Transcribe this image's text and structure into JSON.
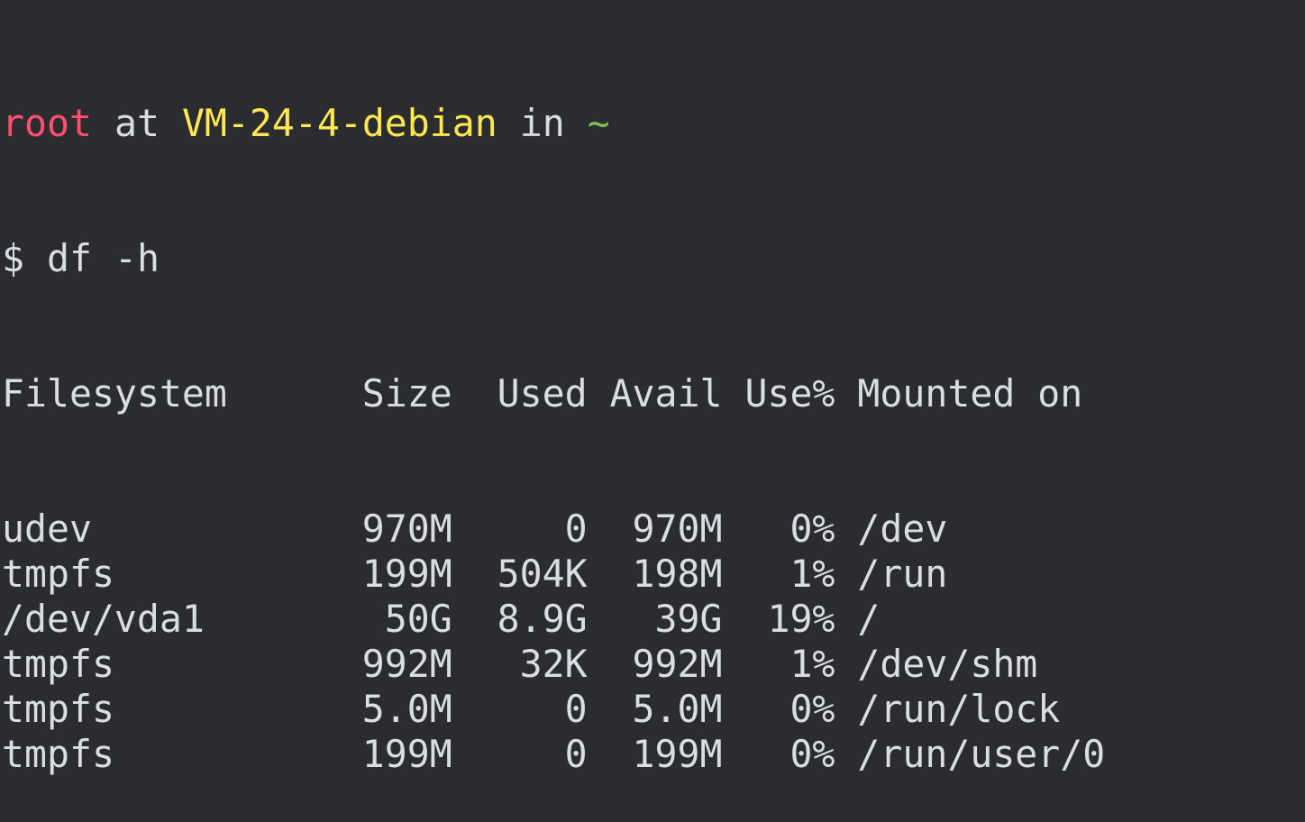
{
  "prompt": {
    "user": "root",
    "at": "at",
    "host": "VM-24-4-debian",
    "in": "in",
    "cwd": "~"
  },
  "command": {
    "symbol": "$",
    "text": "df -h"
  },
  "table": {
    "headers": [
      "Filesystem",
      "Size",
      "Used",
      "Avail",
      "Use%",
      "Mounted on"
    ],
    "rows": [
      [
        "udev",
        "970M",
        "0",
        "970M",
        "0%",
        "/dev"
      ],
      [
        "tmpfs",
        "199M",
        "504K",
        "198M",
        "1%",
        "/run"
      ],
      [
        "/dev/vda1",
        "50G",
        "8.9G",
        "39G",
        "19%",
        "/"
      ],
      [
        "tmpfs",
        "992M",
        "32K",
        "992M",
        "1%",
        "/dev/shm"
      ],
      [
        "tmpfs",
        "5.0M",
        "0",
        "5.0M",
        "0%",
        "/run/lock"
      ],
      [
        "tmpfs",
        "199M",
        "0",
        "199M",
        "0%",
        "/run/user/0"
      ]
    ]
  },
  "colors": {
    "background": "#2b2c2f",
    "text": "#d8dee4",
    "user": "#ff4f6e",
    "host": "#ffe84f",
    "cwd": "#7fc05a"
  }
}
